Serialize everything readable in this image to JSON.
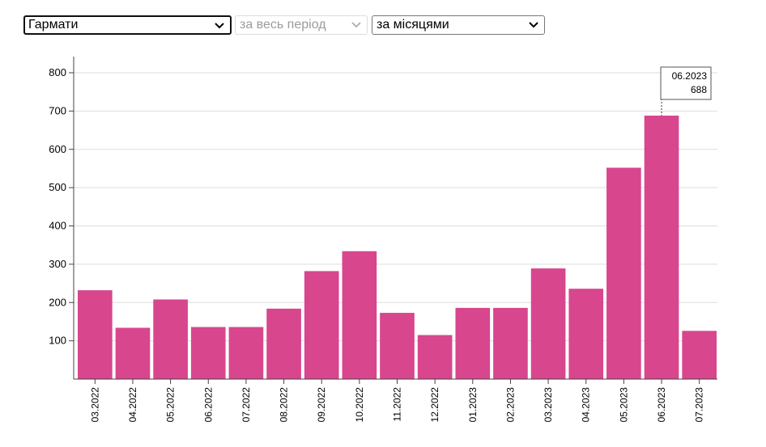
{
  "controls": {
    "category": {
      "value": "Гармати"
    },
    "period": {
      "value": "за весь період",
      "disabled": true
    },
    "grouping": {
      "value": "за місяцями"
    }
  },
  "colors": {
    "bar": "#d8468e",
    "grid": "#dddddd",
    "axis": "#444444"
  },
  "tooltip": {
    "label": "06.2023",
    "value": "688"
  },
  "chart_data": {
    "type": "bar",
    "categories": [
      "03.2022",
      "04.2022",
      "05.2022",
      "06.2022",
      "07.2022",
      "08.2022",
      "09.2022",
      "10.2022",
      "11.2022",
      "12.2022",
      "01.2023",
      "02.2023",
      "03.2023",
      "04.2023",
      "05.2023",
      "06.2023",
      "07.2023"
    ],
    "values": [
      232,
      134,
      208,
      136,
      136,
      184,
      282,
      334,
      173,
      115,
      186,
      186,
      289,
      236,
      552,
      688,
      126
    ],
    "title": "",
    "xlabel": "",
    "ylabel": "",
    "ylim": [
      0,
      800
    ],
    "yticks": [
      100,
      200,
      300,
      400,
      500,
      600,
      700,
      800
    ],
    "grid": true,
    "legend": "none"
  }
}
